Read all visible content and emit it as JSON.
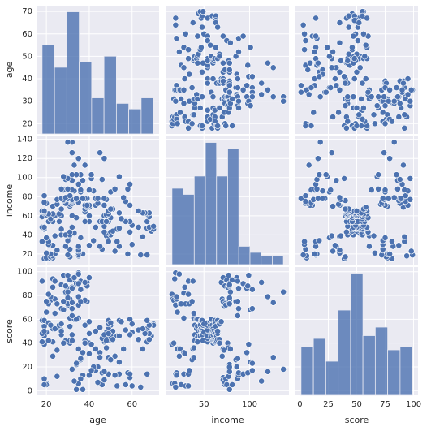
{
  "chart_data": {
    "type": "pairplot",
    "color": "#4c72b0",
    "grid": true,
    "variables": [
      {
        "name": "age",
        "lim": [
          15.4,
          72.6
        ],
        "xticks": [
          20,
          40,
          60
        ],
        "yticks": [
          20,
          30,
          40,
          50,
          60,
          70
        ],
        "hist": {
          "bins": [
            18,
            23.78,
            29.56,
            35.33,
            41.11,
            46.89,
            52.67,
            58.44,
            64.22,
            70
          ],
          "counts": [
            32,
            24,
            44,
            26,
            13,
            28,
            11,
            9,
            13
          ]
        },
        "values": [
          19,
          21,
          20,
          23,
          31,
          22,
          35,
          23,
          64,
          30,
          67,
          35,
          58,
          24,
          37,
          22,
          35,
          20,
          52,
          35,
          35,
          25,
          46,
          31,
          54,
          29,
          45,
          35,
          40,
          23,
          60,
          21,
          53,
          18,
          49,
          21,
          42,
          30,
          36,
          20,
          65,
          24,
          48,
          31,
          49,
          24,
          50,
          27,
          29,
          31,
          49,
          33,
          31,
          59,
          50,
          47,
          51,
          69,
          27,
          53,
          70,
          19,
          67,
          54,
          63,
          18,
          43,
          68,
          19,
          32,
          70,
          47,
          60,
          60,
          59,
          26,
          45,
          40,
          23,
          49,
          57,
          38,
          67,
          46,
          21,
          48,
          55,
          22,
          34,
          50,
          68,
          18,
          48,
          40,
          32,
          24,
          47,
          27,
          48,
          20,
          23,
          49,
          67,
          26,
          49,
          21,
          66,
          54,
          68,
          66,
          65,
          19,
          38,
          19,
          18,
          19,
          63,
          49,
          51,
          50,
          27,
          38,
          40,
          39,
          23,
          31,
          43,
          40,
          59,
          38,
          47,
          39,
          25,
          31,
          20,
          29,
          44,
          32,
          19,
          35,
          57,
          32,
          28,
          32,
          25,
          28,
          48,
          32,
          34,
          34,
          43,
          39,
          44,
          38,
          47,
          27,
          37,
          30,
          34,
          30,
          56,
          29,
          19,
          31,
          50,
          36,
          42,
          33,
          36,
          32,
          40,
          28,
          36,
          36,
          52,
          30,
          58,
          27,
          59,
          35,
          37,
          32,
          46,
          29,
          41,
          30,
          54,
          28,
          41,
          36,
          34,
          32,
          33,
          38,
          47,
          35,
          45,
          32,
          32,
          30
        ]
      },
      {
        "name": "income",
        "lim": [
          8.9,
          143.1
        ],
        "xticks": [
          50,
          100
        ],
        "yticks": [
          20,
          40,
          60,
          80,
          100,
          120,
          140
        ],
        "hist": {
          "bins": [
            15,
            27.2,
            39.4,
            51.6,
            63.8,
            76,
            88.2,
            100.4,
            112.6,
            124.8,
            137
          ],
          "counts": [
            25,
            23,
            29,
            40,
            29,
            38,
            6,
            4,
            3,
            3
          ]
        },
        "values": [
          15,
          15,
          16,
          16,
          17,
          17,
          18,
          18,
          19,
          19,
          19,
          19,
          20,
          20,
          20,
          20,
          21,
          21,
          23,
          23,
          24,
          24,
          25,
          25,
          28,
          28,
          28,
          28,
          29,
          29,
          30,
          30,
          33,
          33,
          33,
          33,
          34,
          34,
          37,
          37,
          38,
          38,
          39,
          39,
          39,
          39,
          40,
          40,
          40,
          40,
          42,
          42,
          43,
          43,
          43,
          43,
          44,
          44,
          46,
          46,
          46,
          46,
          47,
          47,
          48,
          48,
          48,
          48,
          48,
          48,
          49,
          49,
          50,
          50,
          54,
          54,
          54,
          54,
          54,
          54,
          54,
          54,
          54,
          54,
          54,
          54,
          57,
          57,
          58,
          58,
          59,
          59,
          60,
          60,
          60,
          60,
          60,
          60,
          61,
          61,
          62,
          62,
          62,
          62,
          62,
          62,
          63,
          63,
          63,
          63,
          63,
          63,
          64,
          64,
          65,
          65,
          65,
          65,
          67,
          67,
          67,
          67,
          69,
          69,
          70,
          70,
          71,
          71,
          71,
          71,
          71,
          71,
          72,
          72,
          73,
          73,
          73,
          73,
          74,
          74,
          75,
          75,
          76,
          76,
          77,
          77,
          77,
          77,
          78,
          78,
          78,
          78,
          78,
          78,
          78,
          78,
          78,
          78,
          78,
          78,
          79,
          79,
          81,
          81,
          85,
          85,
          86,
          86,
          87,
          87,
          87,
          87,
          87,
          87,
          88,
          88,
          88,
          88,
          93,
          93,
          97,
          97,
          98,
          98,
          99,
          99,
          101,
          101,
          103,
          103,
          103,
          103,
          113,
          113,
          120,
          120,
          126,
          126,
          137,
          137
        ]
      },
      {
        "name": "score",
        "lim": [
          -3.9,
          103.9
        ],
        "xticks": [
          0,
          25,
          50,
          75,
          100
        ],
        "yticks": [
          0,
          20,
          40,
          60,
          80,
          100
        ],
        "hist": {
          "bins": [
            1,
            11.89,
            22.78,
            33.67,
            44.56,
            55.44,
            66.33,
            77.22,
            88.11,
            99
          ],
          "counts": [
            17,
            20,
            12,
            30,
            43,
            21,
            24,
            16,
            17
          ]
        },
        "values": [
          39,
          81,
          6,
          77,
          40,
          76,
          6,
          94,
          3,
          72,
          14,
          99,
          15,
          77,
          13,
          79,
          35,
          66,
          29,
          98,
          35,
          73,
          5,
          73,
          14,
          82,
          32,
          61,
          31,
          87,
          4,
          73,
          4,
          92,
          14,
          81,
          17,
          73,
          26,
          75,
          35,
          92,
          36,
          61,
          28,
          65,
          55,
          47,
          42,
          42,
          52,
          60,
          54,
          60,
          45,
          41,
          50,
          46,
          51,
          46,
          56,
          55,
          52,
          59,
          51,
          59,
          50,
          48,
          59,
          47,
          55,
          42,
          49,
          56,
          47,
          54,
          53,
          48,
          52,
          42,
          51,
          55,
          41,
          44,
          57,
          46,
          58,
          55,
          60,
          46,
          55,
          41,
          49,
          40,
          42,
          52,
          47,
          50,
          42,
          49,
          41,
          48,
          59,
          55,
          56,
          42,
          50,
          46,
          43,
          48,
          52,
          54,
          42,
          46,
          48,
          50,
          43,
          59,
          43,
          57,
          56,
          40,
          58,
          91,
          29,
          77,
          35,
          95,
          11,
          75,
          9,
          75,
          34,
          71,
          5,
          88,
          7,
          73,
          10,
          72,
          5,
          93,
          40,
          87,
          12,
          97,
          36,
          74,
          22,
          90,
          17,
          88,
          20,
          76,
          16,
          89,
          1,
          78,
          1,
          73,
          35,
          83,
          5,
          93,
          26,
          75,
          20,
          95,
          27,
          63,
          13,
          75,
          10,
          92,
          13,
          86,
          15,
          69,
          14,
          90,
          32,
          86,
          15,
          88,
          39,
          97,
          24,
          68,
          17,
          85,
          23,
          69,
          8,
          91,
          16,
          79,
          28,
          74,
          18,
          83
        ]
      }
    ]
  }
}
